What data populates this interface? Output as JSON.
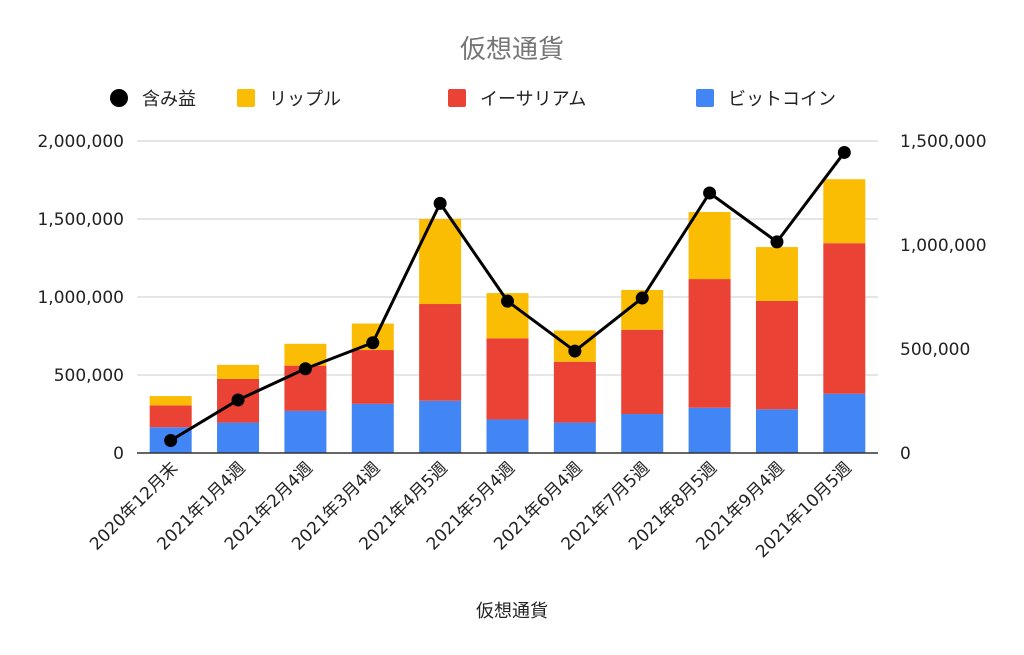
{
  "chart_data": {
    "type": "bar",
    "title": "仮想通貨",
    "xlabel": "仮想通貨",
    "categories": [
      "2020年12月末",
      "2021年1月4週",
      "2021年2月4週",
      "2021年3月4週",
      "2021年4月5週",
      "2021年5月4週",
      "2021年6月4週",
      "2021年7月5週",
      "2021年8月5週",
      "2021年9月4週",
      "2021年10月5週"
    ],
    "stacked": true,
    "series": [
      {
        "name": "ビットコイン",
        "type": "bar",
        "axis": "left",
        "color": "#4285f4",
        "values": [
          165000,
          195000,
          270000,
          315000,
          335000,
          215000,
          195000,
          250000,
          290000,
          280000,
          380000
        ]
      },
      {
        "name": "イーサリアム",
        "type": "bar",
        "axis": "left",
        "color": "#ea4335",
        "values": [
          140000,
          280000,
          290000,
          345000,
          620000,
          520000,
          390000,
          540000,
          825000,
          695000,
          965000
        ]
      },
      {
        "name": "リップル",
        "type": "bar",
        "axis": "left",
        "color": "#fbbc04",
        "values": [
          60000,
          90000,
          140000,
          170000,
          545000,
          290000,
          200000,
          255000,
          430000,
          345000,
          410000
        ]
      },
      {
        "name": "含み益",
        "type": "line",
        "axis": "right",
        "color": "#000000",
        "values": [
          60000,
          255000,
          405000,
          530000,
          1200000,
          730000,
          490000,
          745000,
          1250000,
          1015000,
          1445000
        ]
      }
    ],
    "legend_order": [
      "含み益",
      "リップル",
      "イーサリアム",
      "ビットコイン"
    ],
    "legend_position": "top",
    "ylim_left": [
      0,
      2000000
    ],
    "yticks_left": [
      "0",
      "500,000",
      "1,000,000",
      "1,500,000",
      "2,000,000"
    ],
    "yticks_left_values": [
      0,
      500000,
      1000000,
      1500000,
      2000000
    ],
    "ylim_right": [
      0,
      1500000
    ],
    "yticks_right": [
      "0",
      "500,000",
      "1,000,000",
      "1,500,000"
    ],
    "yticks_right_values": [
      0,
      500000,
      1000000,
      1500000
    ],
    "grid": true
  }
}
